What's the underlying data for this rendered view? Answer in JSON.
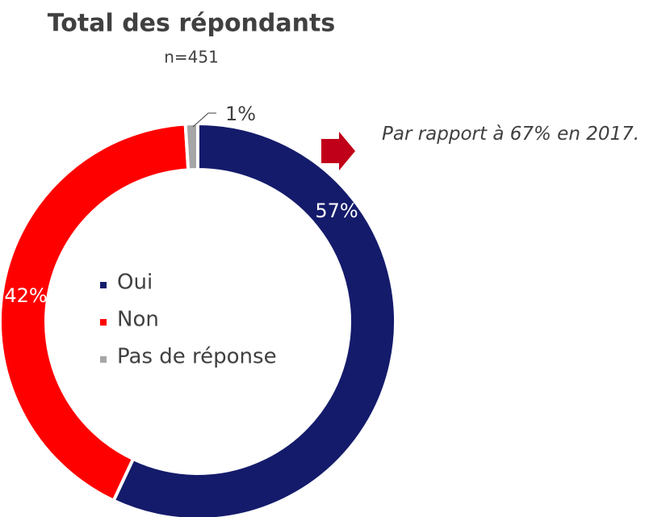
{
  "chart_data": {
    "type": "donut",
    "title": "Total des répondants",
    "subtitle": "n=451",
    "categories": [
      "Oui",
      "Non",
      "Pas de réponse"
    ],
    "values": [
      57,
      42,
      1
    ],
    "value_labels": [
      "57%",
      "42%",
      "1%"
    ],
    "colors": [
      "#141b6b",
      "#ff0000",
      "#a6a6a6"
    ],
    "legend": "center",
    "annotation": "Par rapport à 67% en 2017."
  }
}
